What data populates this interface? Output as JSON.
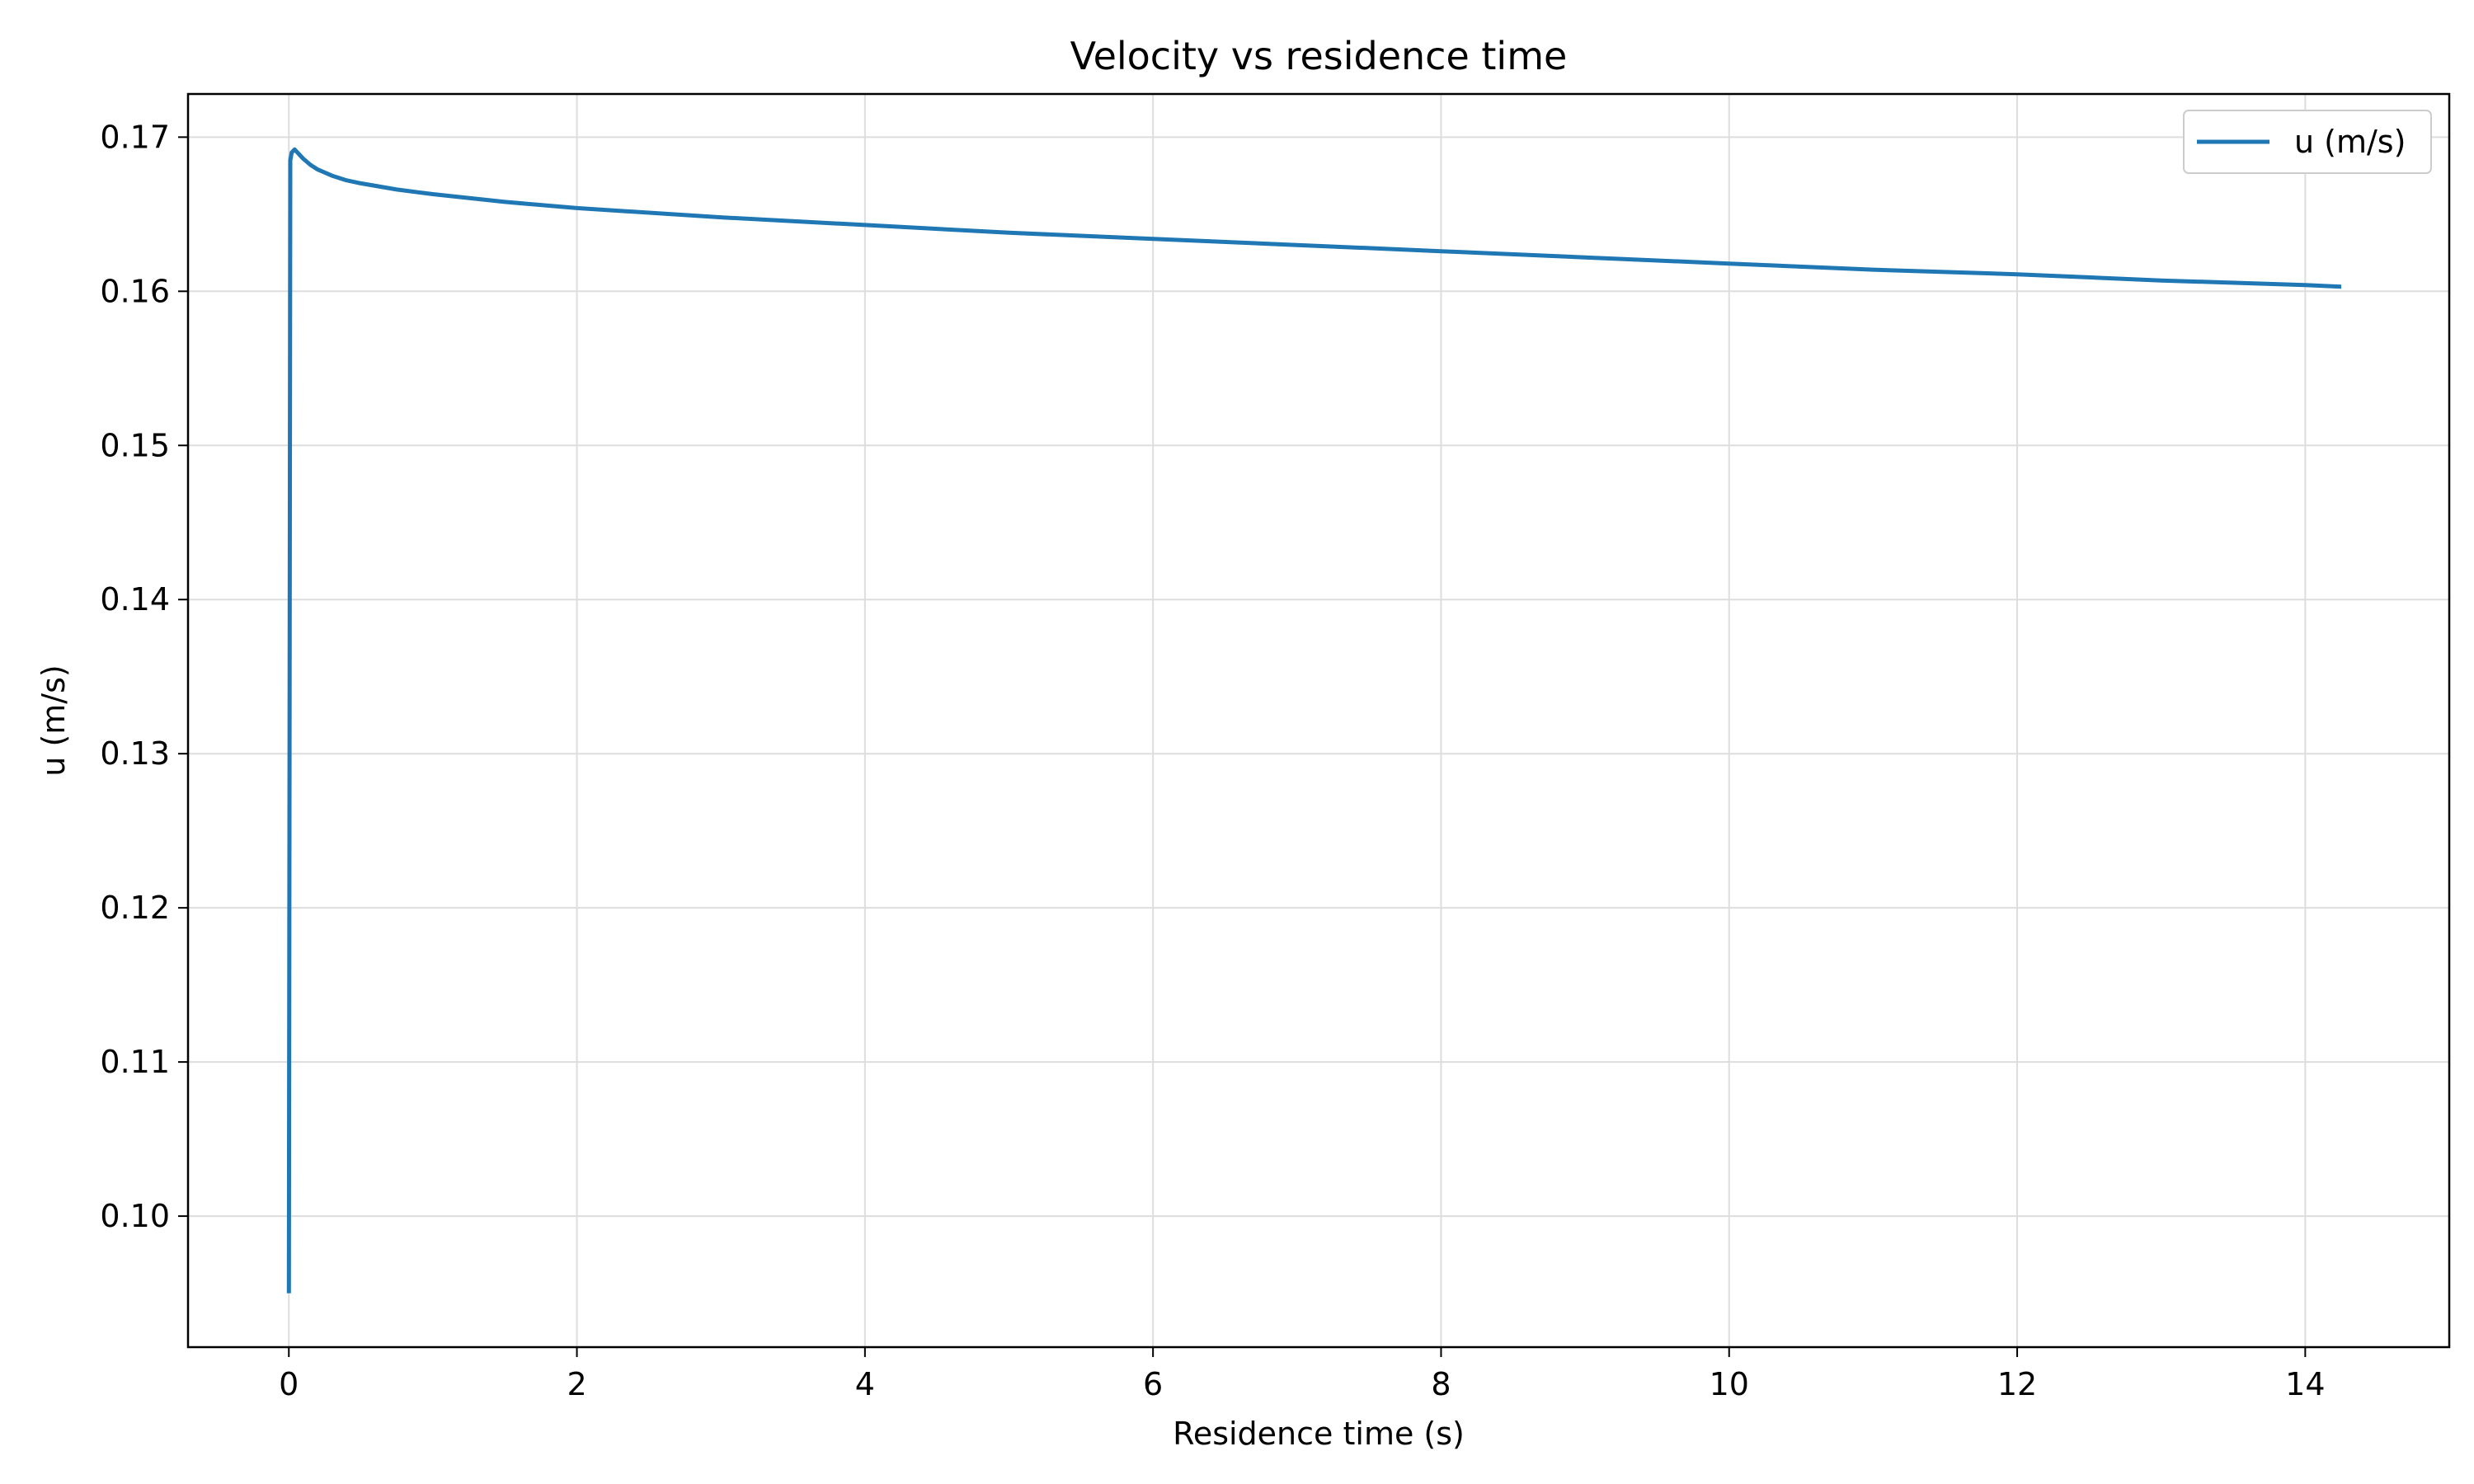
{
  "chart_data": {
    "type": "line",
    "title": "Velocity vs residence time",
    "xlabel": "Residence time (s)",
    "ylabel": "u (m/s)",
    "xlim": [
      -0.7,
      15.0
    ],
    "ylim": [
      0.0915,
      0.1728
    ],
    "xticks": [
      0,
      2,
      4,
      6,
      8,
      10,
      12,
      14
    ],
    "xtick_labels": [
      "0",
      "2",
      "4",
      "6",
      "8",
      "10",
      "12",
      "14"
    ],
    "yticks": [
      0.1,
      0.11,
      0.12,
      0.13,
      0.14,
      0.15,
      0.16,
      0.17
    ],
    "ytick_labels": [
      "0.10",
      "0.11",
      "0.12",
      "0.13",
      "0.14",
      "0.15",
      "0.16",
      "0.17"
    ],
    "grid": true,
    "legend_position": "top-right",
    "series": [
      {
        "name": "u (m/s)",
        "color": "#1f77b4",
        "x": [
          0,
          0.005,
          0.01,
          0.02,
          0.04,
          0.06,
          0.1,
          0.15,
          0.2,
          0.3,
          0.4,
          0.5,
          0.75,
          1.0,
          1.5,
          2.0,
          3.0,
          4.0,
          5.0,
          6.0,
          7.0,
          8.0,
          9.0,
          10.0,
          11.0,
          12.0,
          13.0,
          14.0,
          14.25
        ],
        "y": [
          0.095,
          0.13,
          0.1685,
          0.169,
          0.1692,
          0.169,
          0.1686,
          0.1682,
          0.1679,
          0.1675,
          0.1672,
          0.167,
          0.1666,
          0.1663,
          0.1658,
          0.1654,
          0.1648,
          0.1643,
          0.1638,
          0.1634,
          0.163,
          0.1626,
          0.1622,
          0.1618,
          0.1614,
          0.1611,
          0.1607,
          0.1604,
          0.1603
        ]
      }
    ]
  }
}
